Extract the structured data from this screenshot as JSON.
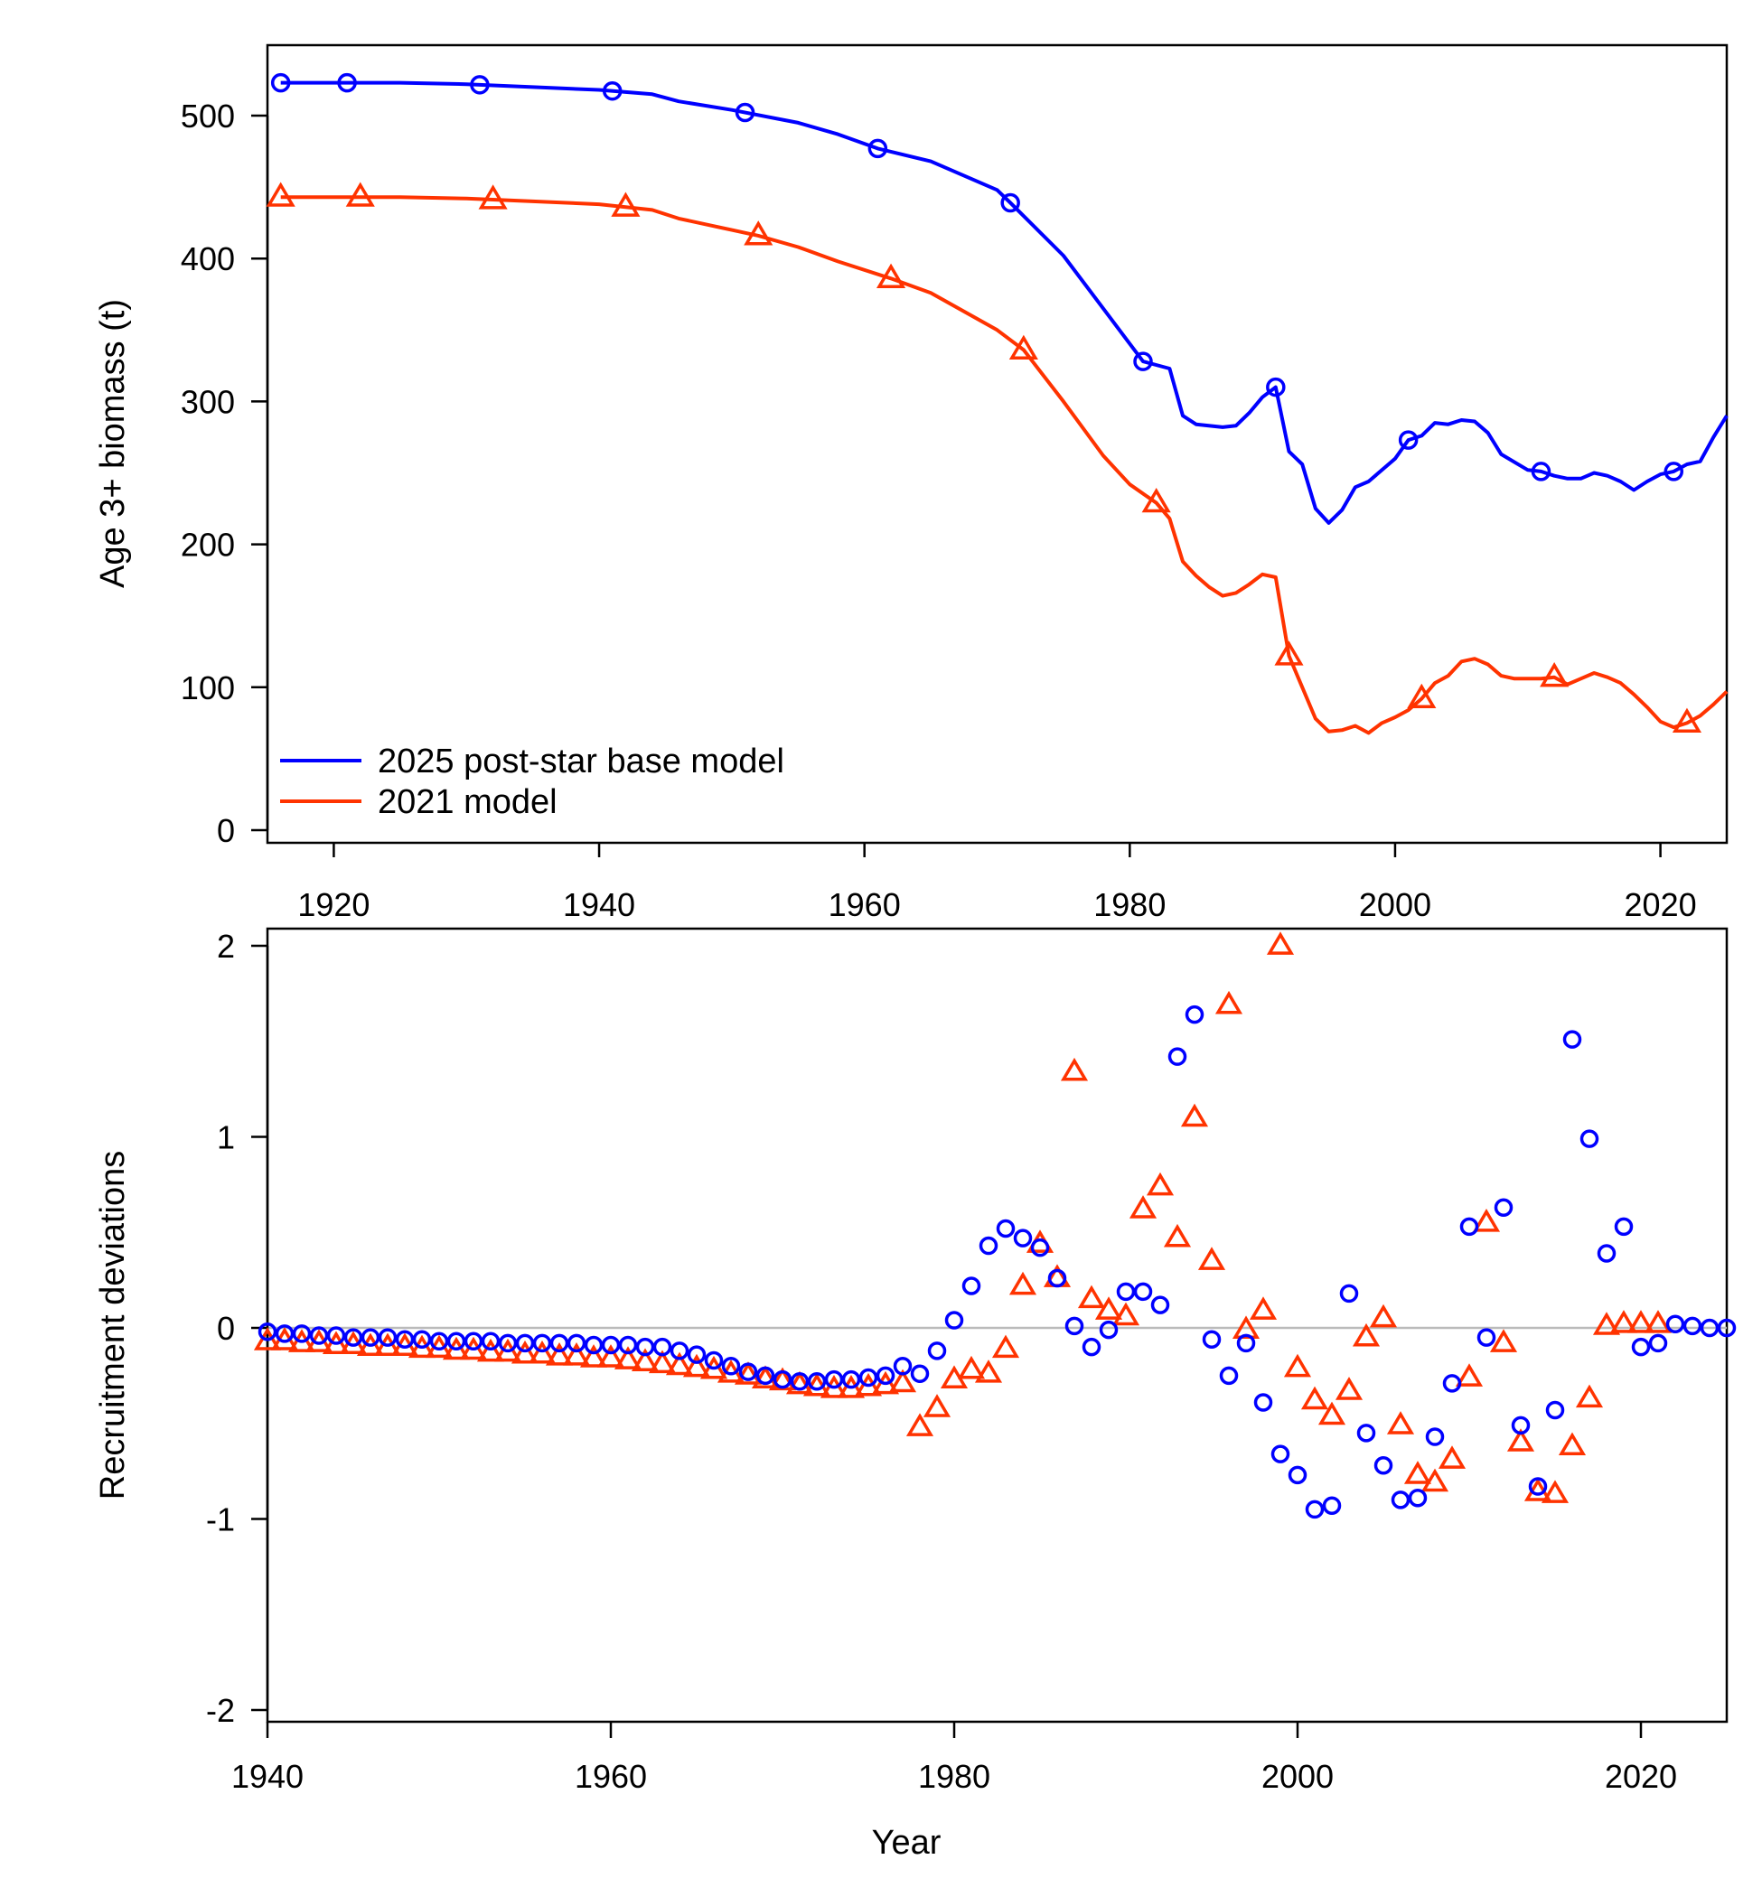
{
  "colors": {
    "series_2025": "#0000FF",
    "series_2021": "#FF3300",
    "zero_line": "#BBBBBB"
  },
  "legend": {
    "placement": "bottom-left",
    "entries": [
      {
        "label": "2025 post-star base model",
        "color": "#0000FF"
      },
      {
        "label": "2021 model",
        "color": "#FF3300"
      }
    ]
  },
  "chart_data": [
    {
      "type": "line",
      "ylabel": "Age 3+ biomass (t)",
      "xlabel": "",
      "xlim": [
        1915,
        2025
      ],
      "ylim": [
        0,
        550
      ],
      "x_ticks": [
        1920,
        1940,
        1960,
        1980,
        2000,
        2020
      ],
      "y_ticks": [
        0,
        100,
        200,
        300,
        400,
        500
      ],
      "grid": false,
      "series": [
        {
          "name": "2025 post-star base model",
          "color": "#0000FF",
          "marker": "circle",
          "marker_years": [
            1916,
            1921,
            1931,
            1941,
            1951,
            1961,
            1971,
            1981,
            1991,
            2001,
            2011,
            2021
          ],
          "points": [
            [
              1916,
              523
            ],
            [
              1920,
              523
            ],
            [
              1925,
              523
            ],
            [
              1930,
              522
            ],
            [
              1935,
              520
            ],
            [
              1940,
              518
            ],
            [
              1944,
              515
            ],
            [
              1946,
              510
            ],
            [
              1950,
              504
            ],
            [
              1955,
              495
            ],
            [
              1958,
              487
            ],
            [
              1961,
              477
            ],
            [
              1965,
              468
            ],
            [
              1970,
              448
            ],
            [
              1971,
              439
            ],
            [
              1975,
              402
            ],
            [
              1978,
              365
            ],
            [
              1981,
              328
            ],
            [
              1983,
              323
            ],
            [
              1984,
              290
            ],
            [
              1985,
              284
            ],
            [
              1987,
              282
            ],
            [
              1988,
              283
            ],
            [
              1989,
              292
            ],
            [
              1990,
              303
            ],
            [
              1991,
              310
            ],
            [
              1992,
              265
            ],
            [
              1993,
              256
            ],
            [
              1994,
              225
            ],
            [
              1995,
              215
            ],
            [
              1996,
              224
            ],
            [
              1997,
              240
            ],
            [
              1998,
              244
            ],
            [
              2000,
              260
            ],
            [
              2001,
              273
            ],
            [
              2002,
              276
            ],
            [
              2003,
              285
            ],
            [
              2004,
              284
            ],
            [
              2005,
              287
            ],
            [
              2006,
              286
            ],
            [
              2007,
              278
            ],
            [
              2008,
              263
            ],
            [
              2010,
              252
            ],
            [
              2011,
              251
            ],
            [
              2012,
              248
            ],
            [
              2013,
              246
            ],
            [
              2014,
              246
            ],
            [
              2015,
              250
            ],
            [
              2016,
              248
            ],
            [
              2017,
              244
            ],
            [
              2018,
              238
            ],
            [
              2019,
              244
            ],
            [
              2020,
              249
            ],
            [
              2021,
              251
            ],
            [
              2022,
              256
            ],
            [
              2023,
              258
            ],
            [
              2024,
              275
            ],
            [
              2025,
              290
            ]
          ]
        },
        {
          "name": "2021 model",
          "color": "#FF3300",
          "marker": "triangle",
          "marker_years": [
            1916,
            1922,
            1932,
            1942,
            1952,
            1962,
            1972,
            1982,
            1992,
            2002,
            2012,
            2022
          ],
          "points": [
            [
              1916,
              443
            ],
            [
              1920,
              443
            ],
            [
              1925,
              443
            ],
            [
              1930,
              442
            ],
            [
              1935,
              440
            ],
            [
              1940,
              438
            ],
            [
              1944,
              434
            ],
            [
              1946,
              428
            ],
            [
              1950,
              420
            ],
            [
              1952,
              416
            ],
            [
              1955,
              408
            ],
            [
              1958,
              398
            ],
            [
              1962,
              386
            ],
            [
              1965,
              376
            ],
            [
              1970,
              350
            ],
            [
              1972,
              336
            ],
            [
              1975,
              300
            ],
            [
              1978,
              262
            ],
            [
              1980,
              242
            ],
            [
              1982,
              229
            ],
            [
              1983,
              218
            ],
            [
              1984,
              188
            ],
            [
              1985,
              178
            ],
            [
              1986,
              170
            ],
            [
              1987,
              164
            ],
            [
              1988,
              166
            ],
            [
              1989,
              172
            ],
            [
              1990,
              179
            ],
            [
              1991,
              177
            ],
            [
              1992,
              122
            ],
            [
              1993,
              100
            ],
            [
              1994,
              78
            ],
            [
              1995,
              69
            ],
            [
              1996,
              70
            ],
            [
              1997,
              73
            ],
            [
              1998,
              68
            ],
            [
              1999,
              75
            ],
            [
              2000,
              79
            ],
            [
              2001,
              84
            ],
            [
              2002,
              92
            ],
            [
              2003,
              103
            ],
            [
              2004,
              108
            ],
            [
              2005,
              118
            ],
            [
              2006,
              120
            ],
            [
              2007,
              116
            ],
            [
              2008,
              108
            ],
            [
              2009,
              106
            ],
            [
              2010,
              106
            ],
            [
              2011,
              106
            ],
            [
              2012,
              107
            ],
            [
              2013,
              102
            ],
            [
              2014,
              106
            ],
            [
              2015,
              110
            ],
            [
              2016,
              107
            ],
            [
              2017,
              103
            ],
            [
              2018,
              95
            ],
            [
              2019,
              86
            ],
            [
              2020,
              76
            ],
            [
              2021,
              72
            ],
            [
              2022,
              75
            ],
            [
              2023,
              80
            ],
            [
              2024,
              88
            ],
            [
              2025,
              97
            ]
          ]
        }
      ]
    },
    {
      "type": "scatter",
      "xlabel": "Year",
      "ylabel": "Recruitment deviations",
      "xlim": [
        1940,
        2025
      ],
      "ylim": [
        -2,
        2
      ],
      "x_ticks": [
        1940,
        1960,
        1980,
        2000,
        2020
      ],
      "y_ticks": [
        -2,
        -1,
        0,
        1,
        2
      ],
      "reference_line_y": 0,
      "grid": false,
      "series": [
        {
          "name": "2025 post-star base model",
          "color": "#0000FF",
          "marker": "circle",
          "x": [
            1940,
            1941,
            1942,
            1943,
            1944,
            1945,
            1946,
            1947,
            1948,
            1949,
            1950,
            1951,
            1952,
            1953,
            1954,
            1955,
            1956,
            1957,
            1958,
            1959,
            1960,
            1961,
            1962,
            1963,
            1964,
            1965,
            1966,
            1967,
            1968,
            1969,
            1970,
            1971,
            1972,
            1973,
            1974,
            1975,
            1976,
            1977,
            1978,
            1979,
            1980,
            1981,
            1982,
            1983,
            1984,
            1985,
            1986,
            1987,
            1988,
            1989,
            1990,
            1991,
            1992,
            1993,
            1994,
            1995,
            1996,
            1997,
            1998,
            1999,
            2000,
            2001,
            2002,
            2003,
            2004,
            2005,
            2006,
            2007,
            2008,
            2009,
            2010,
            2011,
            2012,
            2013,
            2014,
            2015,
            2016,
            2017,
            2018,
            2019,
            2020,
            2021,
            2022,
            2023,
            2024,
            2025
          ],
          "y": [
            -0.02,
            -0.03,
            -0.03,
            -0.04,
            -0.04,
            -0.05,
            -0.05,
            -0.05,
            -0.06,
            -0.06,
            -0.07,
            -0.07,
            -0.07,
            -0.07,
            -0.08,
            -0.08,
            -0.08,
            -0.08,
            -0.08,
            -0.09,
            -0.09,
            -0.09,
            -0.1,
            -0.1,
            -0.12,
            -0.14,
            -0.17,
            -0.2,
            -0.23,
            -0.25,
            -0.27,
            -0.28,
            -0.28,
            -0.27,
            -0.27,
            -0.26,
            -0.25,
            -0.2,
            -0.24,
            -0.12,
            0.04,
            0.22,
            0.43,
            0.52,
            0.47,
            0.42,
            0.26,
            0.01,
            -0.1,
            -0.01,
            0.19,
            0.19,
            0.12,
            1.42,
            1.64,
            -0.06,
            -0.25,
            -0.08,
            -0.39,
            -0.66,
            -0.77,
            -0.95,
            -0.93,
            0.18,
            -0.55,
            -0.72,
            -0.9,
            -0.89,
            -0.57,
            -0.29,
            0.53,
            -0.05,
            0.63,
            -0.51,
            -0.83,
            -0.43,
            1.51,
            0.99,
            0.39,
            0.53,
            -0.1,
            -0.08,
            0.02,
            0.01,
            0.0,
            0.0
          ]
        },
        {
          "name": "2021 model",
          "color": "#FF3300",
          "marker": "triangle",
          "x": [
            1940,
            1941,
            1942,
            1943,
            1944,
            1945,
            1946,
            1947,
            1948,
            1949,
            1950,
            1951,
            1952,
            1953,
            1954,
            1955,
            1956,
            1957,
            1958,
            1959,
            1960,
            1961,
            1962,
            1963,
            1964,
            1965,
            1966,
            1967,
            1968,
            1969,
            1970,
            1971,
            1972,
            1973,
            1974,
            1975,
            1976,
            1977,
            1978,
            1979,
            1980,
            1981,
            1982,
            1983,
            1984,
            1985,
            1986,
            1987,
            1988,
            1989,
            1990,
            1991,
            1992,
            1993,
            1994,
            1995,
            1996,
            1997,
            1998,
            1999,
            2000,
            2001,
            2002,
            2003,
            2004,
            2005,
            2006,
            2007,
            2008,
            2009,
            2010,
            2011,
            2012,
            2013,
            2014,
            2015,
            2016,
            2017,
            2018,
            2019,
            2020,
            2021
          ],
          "y": [
            -0.07,
            -0.07,
            -0.08,
            -0.08,
            -0.09,
            -0.09,
            -0.1,
            -0.1,
            -0.1,
            -0.11,
            -0.11,
            -0.12,
            -0.12,
            -0.13,
            -0.13,
            -0.14,
            -0.14,
            -0.15,
            -0.15,
            -0.16,
            -0.16,
            -0.17,
            -0.18,
            -0.19,
            -0.2,
            -0.21,
            -0.22,
            -0.24,
            -0.25,
            -0.27,
            -0.28,
            -0.3,
            -0.31,
            -0.32,
            -0.32,
            -0.31,
            -0.3,
            -0.29,
            -0.52,
            -0.42,
            -0.27,
            -0.22,
            -0.24,
            -0.11,
            0.22,
            0.44,
            0.26,
            1.34,
            0.15,
            0.09,
            0.06,
            0.62,
            0.74,
            0.47,
            1.1,
            0.35,
            1.69,
            -0.01,
            0.09,
            2.0,
            -0.21,
            -0.38,
            -0.46,
            -0.33,
            -0.05,
            0.05,
            -0.51,
            -0.77,
            -0.81,
            -0.69,
            -0.26,
            0.55,
            -0.08,
            -0.6,
            -0.86,
            -0.87,
            -0.62,
            -0.37,
            0.01,
            0.02,
            0.02,
            0.02
          ]
        }
      ]
    }
  ]
}
